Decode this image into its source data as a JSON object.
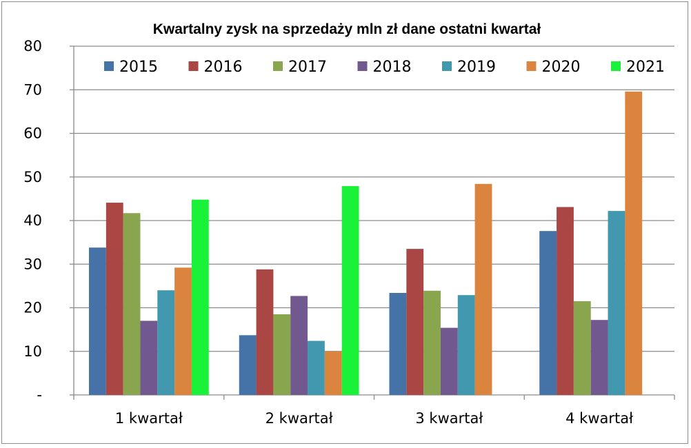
{
  "chart_data": {
    "type": "bar",
    "title": "Kwartalny zysk na sprzedaży mln zł dane ostatni kwartał",
    "xlabel": "",
    "ylabel": "",
    "ylim": [
      0,
      80
    ],
    "yticks": [
      0,
      10,
      20,
      30,
      40,
      50,
      60,
      70,
      80
    ],
    "ytick_labels": [
      "-",
      "10",
      "20",
      "30",
      "40",
      "50",
      "60",
      "70",
      "80"
    ],
    "categories": [
      "1 kwartał",
      "2 kwartał",
      "3 kwartał",
      "4 kwartał"
    ],
    "grid": true,
    "legend_position": "top",
    "series": [
      {
        "name": "2015",
        "color": "#4572A7",
        "values": [
          33.8,
          13.7,
          23.4,
          37.6
        ]
      },
      {
        "name": "2016",
        "color": "#AA4643",
        "values": [
          44.1,
          28.8,
          33.5,
          43.1
        ]
      },
      {
        "name": "2017",
        "color": "#89A54E",
        "values": [
          41.7,
          18.5,
          23.9,
          21.5
        ]
      },
      {
        "name": "2018",
        "color": "#71588F",
        "values": [
          17.0,
          22.7,
          15.4,
          17.2
        ]
      },
      {
        "name": "2019",
        "color": "#4198AF",
        "values": [
          24.0,
          12.4,
          22.9,
          42.2
        ]
      },
      {
        "name": "2020",
        "color": "#DB843D",
        "values": [
          29.2,
          10.0,
          48.4,
          69.6
        ]
      },
      {
        "name": "2021",
        "color": "#1AF23A",
        "values": [
          44.8,
          47.9,
          null,
          null
        ]
      }
    ]
  }
}
